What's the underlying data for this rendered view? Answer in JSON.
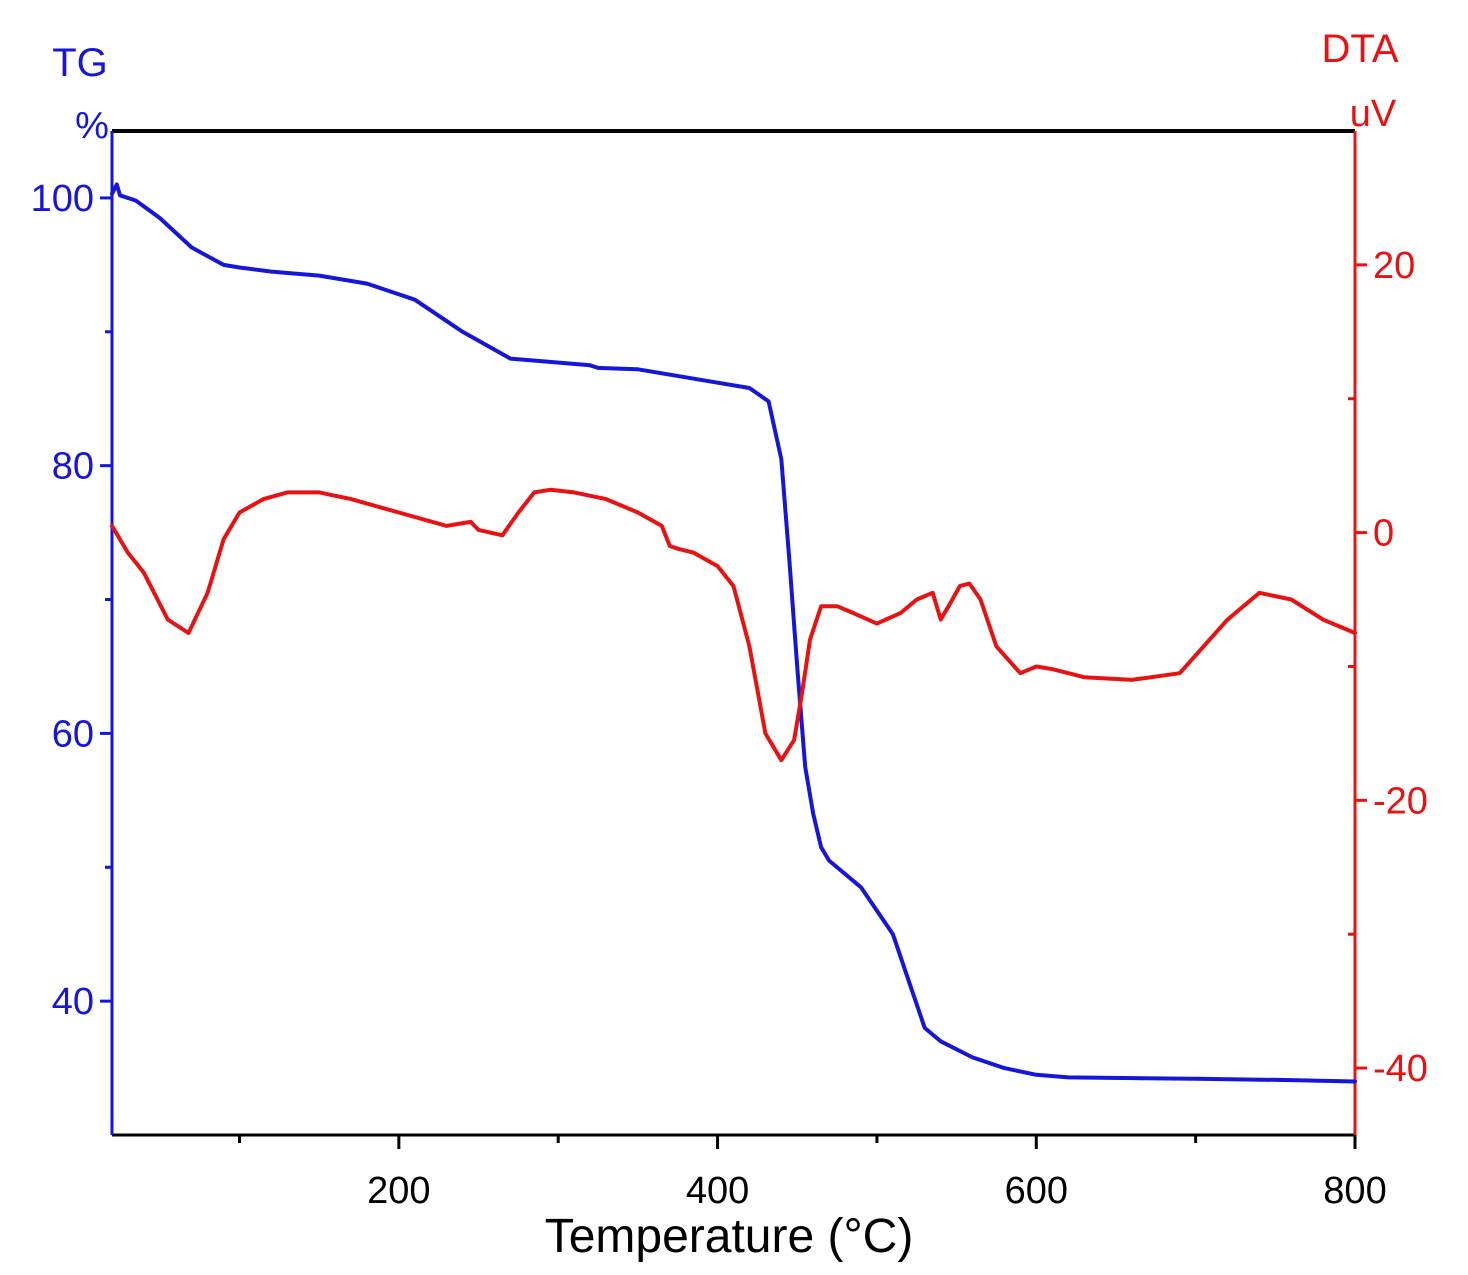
{
  "chart_data": {
    "type": "line",
    "xlabel": "Temperature (°C)",
    "xlim": [
      20,
      800
    ],
    "x_ticks": [
      200,
      400,
      600,
      800
    ],
    "x_minor_ticks": [
      100,
      300,
      500,
      700
    ],
    "left_axis": {
      "title": "TG",
      "unit": "%",
      "color": "#1616d8",
      "ylim": [
        30,
        105
      ],
      "ticks": [
        40,
        60,
        80,
        100
      ],
      "minor_ticks": [
        50,
        70,
        90
      ]
    },
    "right_axis": {
      "title": "DTA",
      "unit": "uV",
      "color": "#e81212",
      "ylim": [
        -45,
        30
      ],
      "ticks": [
        -40,
        -20,
        0,
        20
      ],
      "tick_labels": [
        "-40",
        "-20",
        "0",
        "20"
      ],
      "minor_ticks": [
        -30,
        -10,
        10
      ]
    },
    "series": [
      {
        "name": "TG",
        "axis": "left",
        "color": "#1616d8",
        "x": [
          20,
          23,
          25,
          35,
          50,
          70,
          90,
          100,
          120,
          150,
          180,
          210,
          240,
          270,
          290,
          320,
          325,
          350,
          380,
          400,
          420,
          432,
          440,
          445,
          450,
          455,
          460,
          465,
          470,
          490,
          510,
          520,
          530,
          540,
          560,
          580,
          600,
          620,
          700,
          760,
          800
        ],
        "values": [
          100.3,
          101.0,
          100.2,
          99.8,
          98.5,
          96.3,
          95.0,
          94.8,
          94.5,
          94.2,
          93.6,
          92.4,
          90.0,
          88.0,
          87.8,
          87.5,
          87.3,
          87.2,
          86.6,
          86.2,
          85.8,
          84.8,
          80.5,
          73.0,
          65.0,
          57.5,
          54.0,
          51.5,
          50.5,
          48.5,
          45.0,
          41.5,
          38.0,
          37.0,
          35.8,
          35.0,
          34.5,
          34.3,
          34.2,
          34.1,
          34.0
        ]
      },
      {
        "name": "DTA",
        "axis": "right",
        "color": "#e81212",
        "x": [
          20,
          30,
          40,
          55,
          68,
          80,
          90,
          100,
          115,
          130,
          150,
          170,
          200,
          230,
          245,
          250,
          265,
          275,
          285,
          295,
          310,
          330,
          350,
          365,
          370,
          375,
          385,
          400,
          410,
          420,
          430,
          440,
          448,
          453,
          458,
          465,
          475,
          485,
          500,
          515,
          525,
          535,
          540,
          545,
          552,
          558,
          565,
          575,
          590,
          600,
          610,
          630,
          660,
          690,
          720,
          740,
          760,
          780,
          800
        ],
        "values": [
          0.5,
          -1.5,
          -3.0,
          -6.5,
          -7.5,
          -4.5,
          -0.5,
          1.5,
          2.5,
          3.0,
          3.0,
          2.5,
          1.5,
          0.5,
          0.8,
          0.2,
          -0.2,
          1.5,
          3.0,
          3.2,
          3.0,
          2.5,
          1.5,
          0.5,
          -1.0,
          -1.2,
          -1.5,
          -2.5,
          -4.0,
          -8.5,
          -15.0,
          -17.0,
          -15.5,
          -12.0,
          -8.0,
          -5.5,
          -5.5,
          -6.0,
          -6.8,
          -6.0,
          -5.0,
          -4.5,
          -6.5,
          -5.5,
          -4.0,
          -3.8,
          -5.0,
          -8.5,
          -10.5,
          -10.0,
          -10.2,
          -10.8,
          -11.0,
          -10.5,
          -6.5,
          -4.5,
          -5.0,
          -6.5,
          -7.5
        ]
      }
    ]
  }
}
